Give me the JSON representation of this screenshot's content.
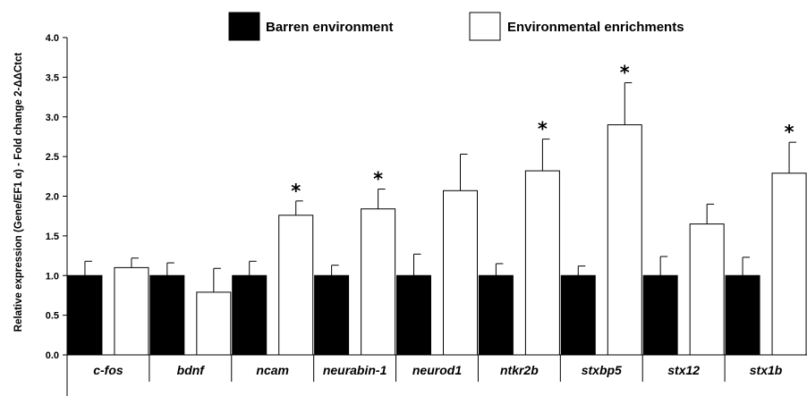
{
  "chart_data": {
    "type": "bar",
    "title": "",
    "xlabel": "",
    "ylabel": "Relative expression (Gene/EF1 α) - Fold change  2-ΔΔCtct",
    "ylim": [
      0,
      4.0
    ],
    "yticks": [
      "0.0",
      "0.5",
      "1.0",
      "1.5",
      "2.0",
      "2.5",
      "3.0",
      "3.5",
      "4.0"
    ],
    "grid": false,
    "legend_position": "top",
    "categories": [
      "c-fos",
      "bdnf",
      "ncam",
      "neurabin-1",
      "neurod1",
      "ntkr2b",
      "stxbp5",
      "stx12",
      "stx1b"
    ],
    "series": [
      {
        "name": "Barren environment",
        "color": "#000000",
        "values": [
          1.0,
          1.0,
          1.0,
          1.0,
          1.0,
          1.0,
          1.0,
          1.0,
          1.0
        ],
        "errors": [
          0.18,
          0.16,
          0.18,
          0.13,
          0.27,
          0.15,
          0.12,
          0.24,
          0.23
        ]
      },
      {
        "name": "Environmental enrichments",
        "color": "#ffffff",
        "values": [
          1.1,
          0.79,
          1.76,
          1.84,
          2.07,
          2.32,
          2.9,
          1.65,
          2.29
        ],
        "errors": [
          0.12,
          0.3,
          0.18,
          0.25,
          0.46,
          0.4,
          0.53,
          0.25,
          0.39
        ]
      }
    ],
    "annotations": [
      {
        "category": "ncam",
        "text": "*"
      },
      {
        "category": "neurabin-1",
        "text": "*"
      },
      {
        "category": "ntkr2b",
        "text": "*"
      },
      {
        "category": "stxbp5",
        "text": "*"
      },
      {
        "category": "stx1b",
        "text": "*"
      }
    ]
  }
}
